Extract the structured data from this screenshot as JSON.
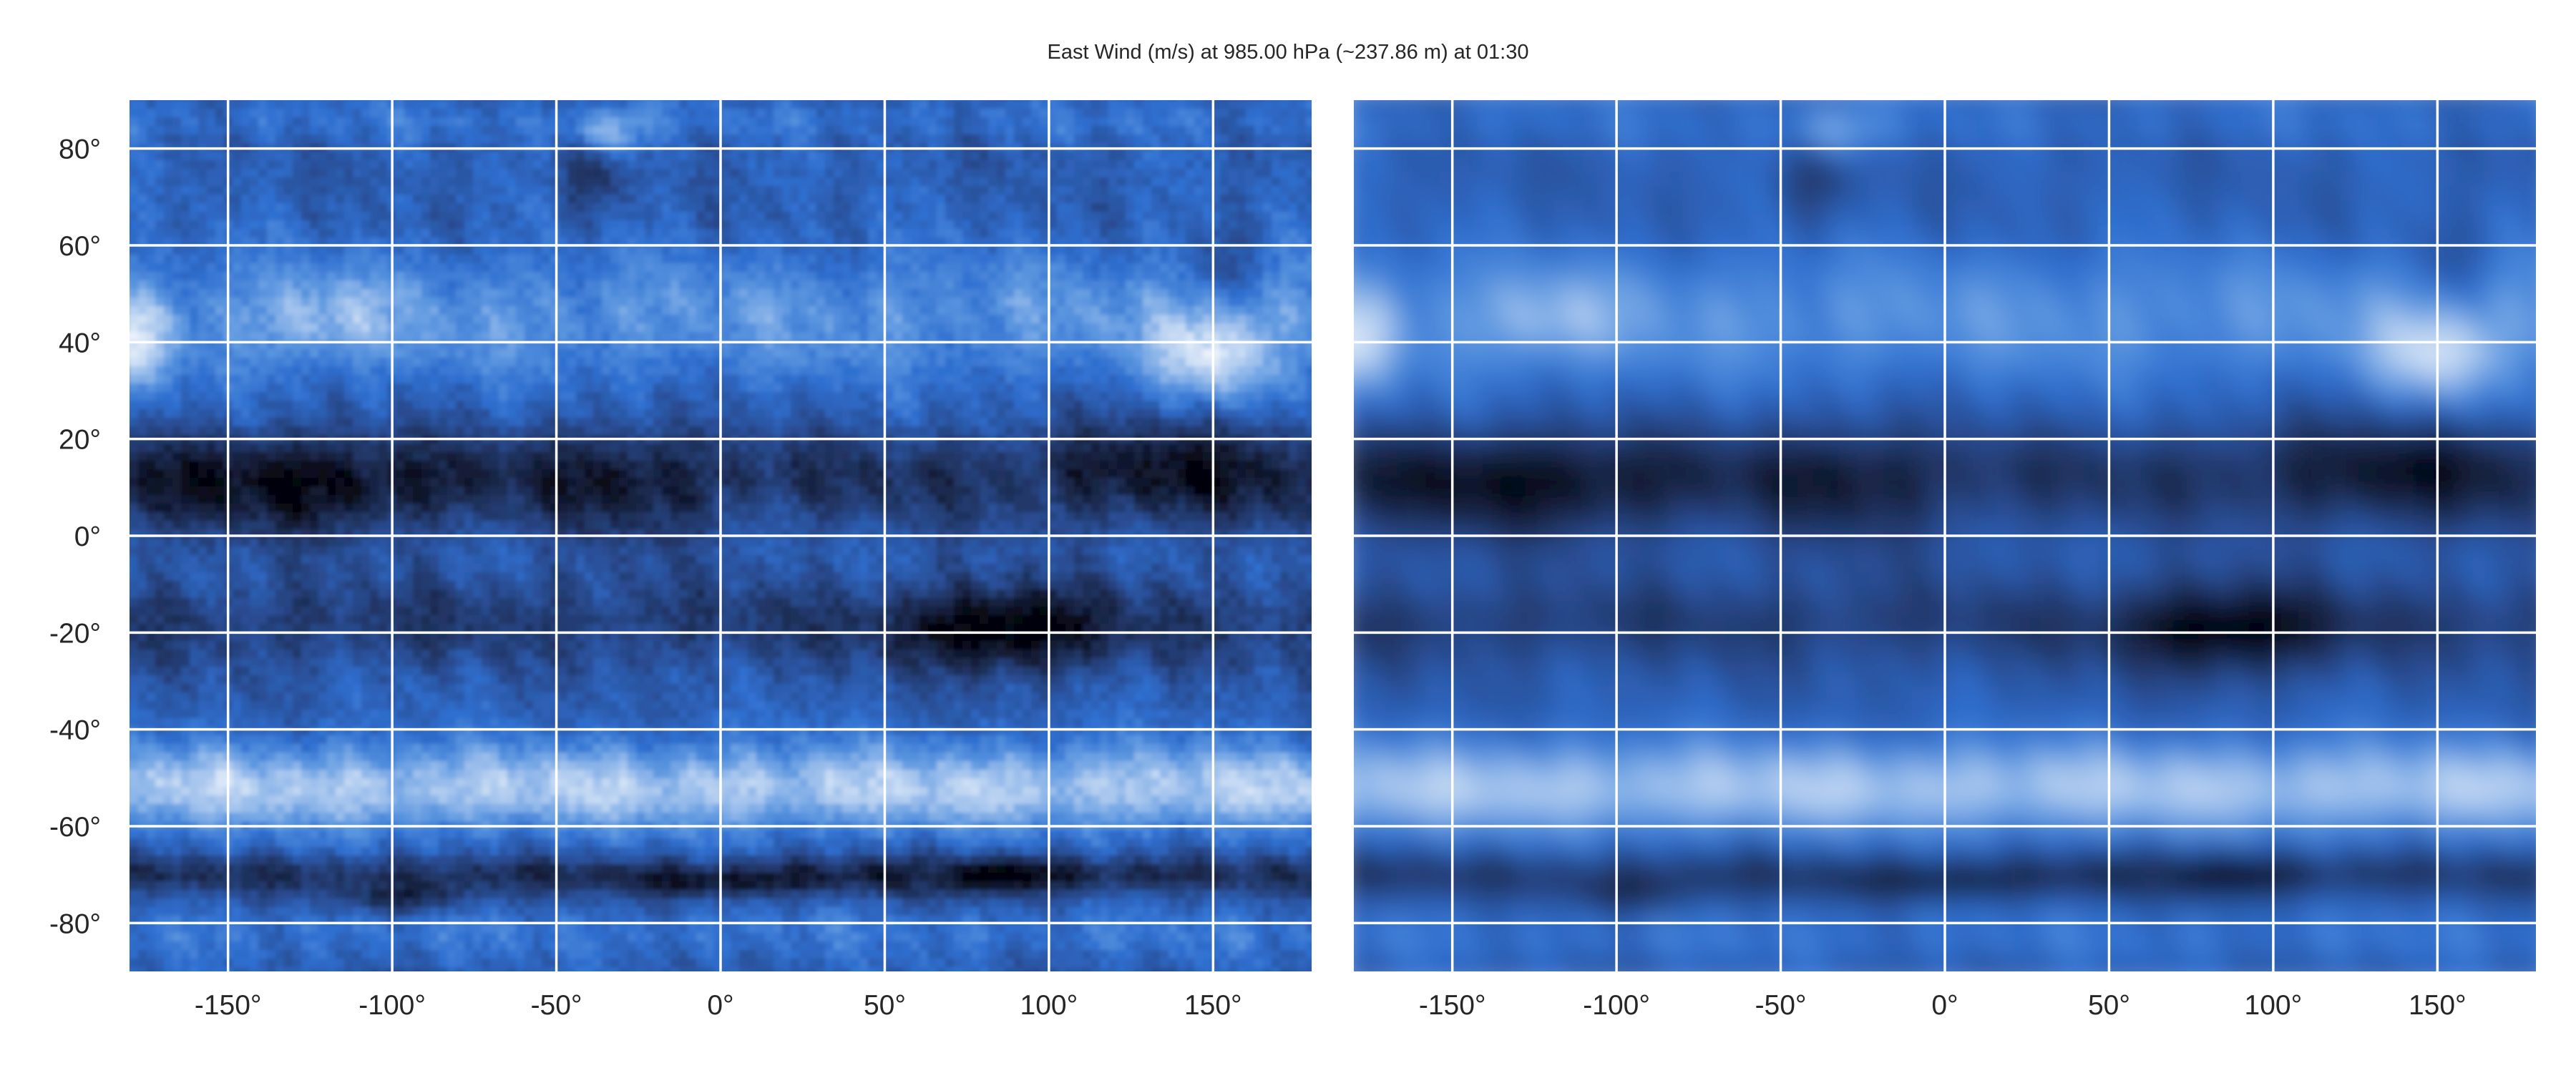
{
  "chart_data": [
    {
      "type": "heatmap",
      "title": "East Wind (m/s) at 985.00 hPa (~237.86 m) at 01:30",
      "panel": "left",
      "xlim": [
        -180,
        180
      ],
      "ylim": [
        -90,
        90
      ],
      "grid": true,
      "x_ticks": [
        -150,
        -100,
        -50,
        0,
        50,
        100,
        150
      ],
      "y_ticks": [
        80,
        60,
        40,
        20,
        0,
        -20,
        -40,
        -60,
        -80
      ],
      "x_tick_labels": [
        "-150°",
        "-100°",
        "-50°",
        "0°",
        "50°",
        "100°",
        "150°"
      ],
      "y_tick_labels": [
        "80°",
        "60°",
        "40°",
        "20°",
        "0°",
        "-20°",
        "-40°",
        "-60°",
        "-80°"
      ],
      "colormap": [
        "#05060f",
        "#1c2a4e",
        "#2a4d94",
        "#2f6fd0",
        "#5d97e0",
        "#a9c7ee",
        "#eef4fb"
      ],
      "field_resolution": "fine"
    },
    {
      "type": "heatmap",
      "panel": "right",
      "xlim": [
        -180,
        180
      ],
      "ylim": [
        -90,
        90
      ],
      "grid": true,
      "x_ticks": [
        -150,
        -100,
        -50,
        0,
        50,
        100,
        150
      ],
      "y_ticks": [
        80,
        60,
        40,
        20,
        0,
        -20,
        -40,
        -60,
        -80
      ],
      "x_tick_labels": [
        "-150°",
        "-100°",
        "-50°",
        "0°",
        "50°",
        "100°",
        "150°"
      ],
      "y_tick_labels": [],
      "colormap": [
        "#05060f",
        "#1c2a4e",
        "#2a4d94",
        "#2f6fd0",
        "#5d97e0",
        "#a9c7ee",
        "#eef4fb"
      ],
      "field_resolution": "smoothed"
    }
  ]
}
